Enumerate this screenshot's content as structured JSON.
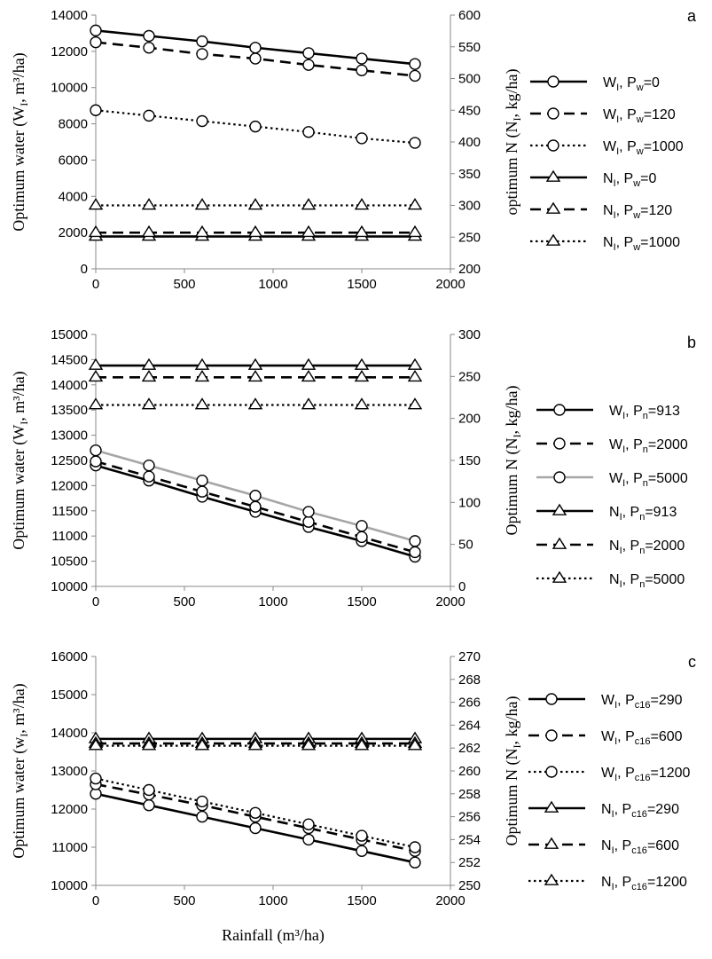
{
  "chart_data": [
    {
      "type": "line",
      "panel_label": "a",
      "xlabel": "",
      "ylabel": "Optimum water (W_I, m³/ha)",
      "ylabel_right": "optimum N (N_I, kg/ha)",
      "xlim": [
        0,
        2000
      ],
      "x_ticks": [
        0,
        500,
        1000,
        1500,
        2000
      ],
      "ylim": [
        0,
        14000
      ],
      "y_ticks": [
        0,
        2000,
        4000,
        6000,
        8000,
        10000,
        12000,
        14000
      ],
      "y2lim": [
        200,
        600
      ],
      "y2_ticks": [
        200,
        250,
        300,
        350,
        400,
        450,
        500,
        550,
        600
      ],
      "x": [
        0,
        300,
        600,
        900,
        1200,
        1500,
        1800
      ],
      "grid": false,
      "legend_position": "right",
      "series": [
        {
          "legend_main": "W",
          "legend_sub": "I",
          "legend_p": "w",
          "legend_val": "0",
          "axis": "left",
          "marker": "circle",
          "dash": "solid",
          "color": "#000000",
          "width": 2.6,
          "values": [
            13150,
            12850,
            12550,
            12200,
            11900,
            11600,
            11300
          ]
        },
        {
          "legend_main": "W",
          "legend_sub": "I",
          "legend_p": "w",
          "legend_val": "120",
          "axis": "left",
          "marker": "circle",
          "dash": "dashed",
          "color": "#000000",
          "width": 2.6,
          "values": [
            12500,
            12200,
            11850,
            11600,
            11250,
            10950,
            10650
          ]
        },
        {
          "legend_main": "W",
          "legend_sub": "I",
          "legend_p": "w",
          "legend_val": "1000",
          "axis": "left",
          "marker": "circle",
          "dash": "dotted",
          "color": "#000000",
          "width": 2.2,
          "values": [
            8750,
            8450,
            8150,
            7850,
            7550,
            7200,
            6950
          ]
        },
        {
          "legend_main": "N",
          "legend_sub": "I",
          "legend_p": "w",
          "legend_val": "0",
          "axis": "right",
          "marker": "triangle",
          "dash": "solid",
          "color": "#000000",
          "width": 2.6,
          "values": [
            251,
            251,
            251,
            251,
            251,
            251,
            251
          ]
        },
        {
          "legend_main": "N",
          "legend_sub": "I",
          "legend_p": "w",
          "legend_val": "120",
          "axis": "right",
          "marker": "triangle",
          "dash": "dashed",
          "color": "#000000",
          "width": 2.6,
          "values": [
            257,
            257,
            257,
            257,
            257,
            257,
            257
          ]
        },
        {
          "legend_main": "N",
          "legend_sub": "I",
          "legend_p": "w",
          "legend_val": "1000",
          "axis": "right",
          "marker": "triangle",
          "dash": "dotted",
          "color": "#000000",
          "width": 2.2,
          "values": [
            300,
            300,
            300,
            300,
            300,
            300,
            300
          ]
        }
      ]
    },
    {
      "type": "line",
      "panel_label": "b",
      "xlabel": "",
      "ylabel": "Optimum water (W_I, m³/ha)",
      "ylabel_right": "Optimum N (N_I, kg/ha)",
      "xlim": [
        0,
        2000
      ],
      "x_ticks": [
        0,
        500,
        1000,
        1500,
        2000
      ],
      "ylim": [
        10000,
        15000
      ],
      "y_ticks": [
        10000,
        10500,
        11000,
        11500,
        12000,
        12500,
        13000,
        13500,
        14000,
        14500,
        15000
      ],
      "y2lim": [
        0,
        300
      ],
      "y2_ticks": [
        0,
        50,
        100,
        150,
        200,
        250,
        300
      ],
      "x": [
        0,
        300,
        600,
        900,
        1200,
        1500,
        1800
      ],
      "grid": false,
      "legend_position": "right",
      "series": [
        {
          "legend_main": "W",
          "legend_sub": "I",
          "legend_p": "n",
          "legend_val": "913",
          "axis": "left",
          "marker": "circle",
          "dash": "solid",
          "color": "#000000",
          "width": 2.6,
          "values": [
            12400,
            12100,
            11780,
            11480,
            11180,
            10900,
            10590
          ]
        },
        {
          "legend_main": "W",
          "legend_sub": "I",
          "legend_p": "n",
          "legend_val": "2000",
          "axis": "left",
          "marker": "circle",
          "dash": "dashed",
          "color": "#000000",
          "width": 2.6,
          "values": [
            12480,
            12180,
            11880,
            11580,
            11280,
            10980,
            10680
          ]
        },
        {
          "legend_main": "W",
          "legend_sub": "I",
          "legend_p": "n",
          "legend_val": "5000",
          "axis": "left",
          "marker": "circle",
          "dash": "solid",
          "color": "#a6a6a6",
          "width": 2.6,
          "values": [
            12700,
            12400,
            12100,
            11800,
            11480,
            11200,
            10900
          ]
        },
        {
          "legend_main": "N",
          "legend_sub": "I",
          "legend_p": "n",
          "legend_val": "913",
          "axis": "right",
          "marker": "triangle",
          "dash": "solid",
          "color": "#000000",
          "width": 2.6,
          "values": [
            263,
            263,
            263,
            263,
            263,
            263,
            263
          ]
        },
        {
          "legend_main": "N",
          "legend_sub": "I",
          "legend_p": "n",
          "legend_val": "2000",
          "axis": "right",
          "marker": "triangle",
          "dash": "dashed",
          "color": "#000000",
          "width": 2.6,
          "values": [
            249,
            249,
            249,
            249,
            249,
            249,
            249
          ]
        },
        {
          "legend_main": "N",
          "legend_sub": "I",
          "legend_p": "n",
          "legend_val": "5000",
          "axis": "right",
          "marker": "triangle",
          "dash": "dotted",
          "color": "#000000",
          "width": 2.2,
          "values": [
            216,
            216,
            216,
            216,
            216,
            216,
            216
          ]
        }
      ]
    },
    {
      "type": "line",
      "panel_label": "c",
      "xlabel": "Rainfall (m³/ha)",
      "ylabel": "Optimum water (w_I, m³/ha)",
      "ylabel_right": "Optimum N (N_I, kg/ha)",
      "xlim": [
        0,
        2000
      ],
      "x_ticks": [
        0,
        500,
        1000,
        1500,
        2000
      ],
      "ylim": [
        10000,
        16000
      ],
      "y_ticks": [
        10000,
        11000,
        12000,
        13000,
        14000,
        15000,
        16000
      ],
      "y2lim": [
        250,
        270
      ],
      "y2_ticks": [
        250,
        252,
        254,
        256,
        258,
        260,
        262,
        264,
        266,
        268,
        270
      ],
      "x": [
        0,
        300,
        600,
        900,
        1200,
        1500,
        1800
      ],
      "grid": false,
      "legend_position": "right",
      "series": [
        {
          "legend_main": "W",
          "legend_sub": "I",
          "legend_p": "c16",
          "legend_val": "290",
          "axis": "left",
          "marker": "circle",
          "dash": "solid",
          "color": "#000000",
          "width": 2.6,
          "values": [
            12400,
            12100,
            11800,
            11500,
            11200,
            10900,
            10600
          ]
        },
        {
          "legend_main": "W",
          "legend_sub": "I",
          "legend_p": "c16",
          "legend_val": "600",
          "axis": "left",
          "marker": "circle",
          "dash": "dashed",
          "color": "#000000",
          "width": 2.6,
          "values": [
            12650,
            12380,
            12100,
            11800,
            11500,
            11200,
            10900
          ]
        },
        {
          "legend_main": "W",
          "legend_sub": "I",
          "legend_p": "c16",
          "legend_val": "1200",
          "axis": "left",
          "marker": "circle",
          "dash": "dotted",
          "color": "#000000",
          "width": 2.2,
          "values": [
            12800,
            12500,
            12200,
            11900,
            11600,
            11300,
            11000
          ]
        },
        {
          "legend_main": "N",
          "legend_sub": "I",
          "legend_p": "c16",
          "legend_val": "290",
          "axis": "right",
          "marker": "triangle",
          "dash": "solid",
          "color": "#000000",
          "width": 2.6,
          "values": [
            262.8,
            262.8,
            262.8,
            262.8,
            262.8,
            262.8,
            262.8
          ]
        },
        {
          "legend_main": "N",
          "legend_sub": "I",
          "legend_p": "c16",
          "legend_val": "600",
          "axis": "right",
          "marker": "triangle",
          "dash": "dashed",
          "color": "#000000",
          "width": 2.6,
          "values": [
            262.4,
            262.4,
            262.4,
            262.4,
            262.4,
            262.4,
            262.4
          ]
        },
        {
          "legend_main": "N",
          "legend_sub": "I",
          "legend_p": "c16",
          "legend_val": "1200",
          "axis": "right",
          "marker": "triangle",
          "dash": "dotted",
          "color": "#000000",
          "width": 2.2,
          "values": [
            262.2,
            262.2,
            262.2,
            262.2,
            262.2,
            262.2,
            262.2
          ]
        }
      ]
    }
  ]
}
